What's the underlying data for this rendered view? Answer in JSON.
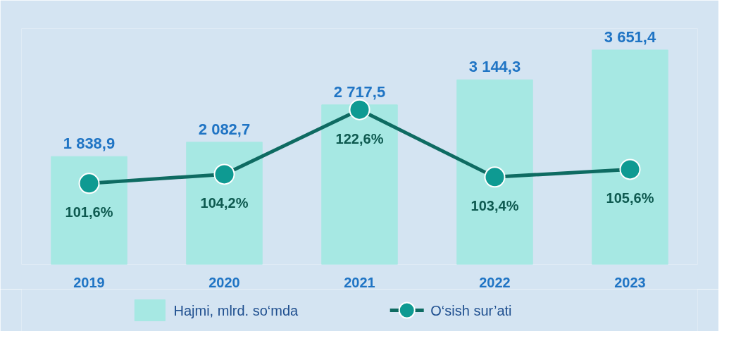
{
  "chart_data": {
    "type": "bar",
    "categories": [
      "2019",
      "2020",
      "2021",
      "2022",
      "2023"
    ],
    "series": [
      {
        "name": "Hajmi, mlrd. so‘mda",
        "color": "#a6e8e3",
        "values": [
          1838.9,
          2082.7,
          2717.5,
          3144.3,
          3651.4
        ],
        "value_labels": [
          "1 838,9",
          "2 082,7",
          "2 717,5",
          "3 144,3",
          "3 651,4"
        ]
      },
      {
        "name": "O‘sish sur’ati",
        "type": "line",
        "axis": "y2",
        "color": "#0e6b62",
        "values": [
          101.6,
          104.2,
          122.6,
          103.4,
          105.6
        ],
        "value_labels": [
          "101,6%",
          "104,2%",
          "122,6%",
          "103,4%",
          "105,6%"
        ]
      }
    ],
    "marker": "circle",
    "legend": "bottom"
  }
}
